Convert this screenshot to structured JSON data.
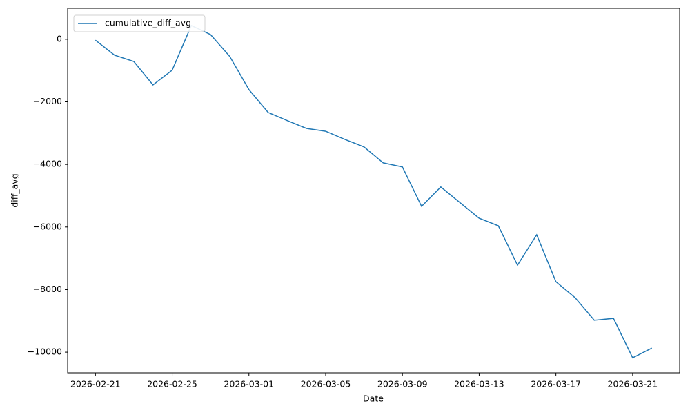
{
  "chart_data": {
    "type": "line",
    "x_label": "Date",
    "y_label": "diff_avg",
    "x": [
      "2026-02-21",
      "2026-02-22",
      "2026-02-23",
      "2026-02-24",
      "2026-02-25",
      "2026-02-26",
      "2026-02-27",
      "2026-02-28",
      "2026-03-01",
      "2026-03-02",
      "2026-03-03",
      "2026-03-04",
      "2026-03-05",
      "2026-03-06",
      "2026-03-07",
      "2026-03-08",
      "2026-03-09",
      "2026-03-10",
      "2026-03-11",
      "2026-03-12",
      "2026-03-13",
      "2026-03-14",
      "2026-03-15",
      "2026-03-16",
      "2026-03-17",
      "2026-03-18",
      "2026-03-19",
      "2026-03-20",
      "2026-03-21",
      "2026-03-22"
    ],
    "series": [
      {
        "name": "cumulative_diff_avg",
        "color": "#1f77b4",
        "values": [
          -30,
          -510,
          -710,
          -1460,
          -990,
          440,
          150,
          -550,
          -1610,
          -2340,
          -2600,
          -2850,
          -2940,
          -3200,
          -3440,
          -3950,
          -4080,
          -5340,
          -4720,
          -5220,
          -5720,
          -5960,
          -7220,
          -6250,
          -7750,
          -8260,
          -8980,
          -8920,
          -10180,
          -9870
        ]
      }
    ],
    "xlim": [
      "2026-02-19T13:12Z",
      "2026-03-23T10:48Z"
    ],
    "xticks": [
      "2026-02-21",
      "2026-02-25",
      "2026-03-01",
      "2026-03-05",
      "2026-03-09",
      "2026-03-13",
      "2026-03-17",
      "2026-03-21"
    ],
    "ylim": [
      -10660,
      990
    ],
    "yticks": [
      0,
      {
        "value": -2000,
        "label": "−2000"
      },
      {
        "value": -4000,
        "label": "−4000"
      },
      {
        "value": -6000,
        "label": "−6000"
      },
      {
        "value": -8000,
        "label": "−8000"
      },
      {
        "value": -10000,
        "label": "−10000"
      }
    ],
    "grid": false,
    "legend": "upper-left"
  }
}
